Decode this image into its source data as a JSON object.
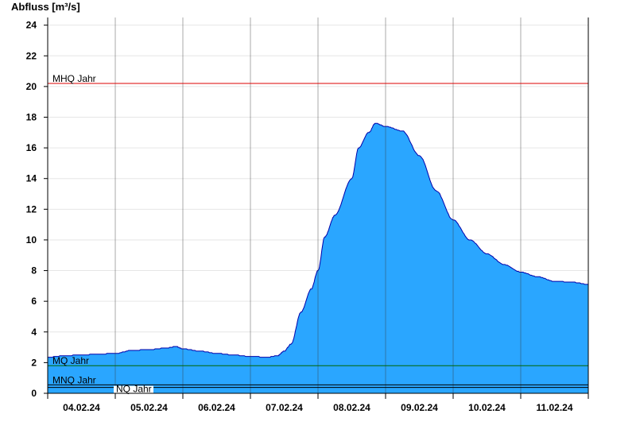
{
  "chart_data": {
    "type": "area",
    "ylabel": "Abfluss [m³/s]",
    "ylim": [
      0,
      24.5
    ],
    "yticks": [
      0,
      2,
      4,
      6,
      8,
      10,
      12,
      14,
      16,
      18,
      20,
      22,
      24
    ],
    "xlim": [
      0,
      8
    ],
    "x_unit": "days",
    "x_tick_labels": [
      "04.02.24",
      "05.02.24",
      "06.02.24",
      "07.02.24",
      "08.02.24",
      "09.02.24",
      "10.02.24",
      "11.02.24"
    ],
    "grid": true,
    "fill_color": "#2aa6ff",
    "line_color": "#0000aa",
    "series": [
      {
        "x": [
          0.0,
          0.25,
          0.5,
          0.75,
          1.0,
          1.25,
          1.5,
          1.75,
          1.9,
          2.0,
          2.25,
          2.5,
          2.75,
          3.0,
          3.25,
          3.4,
          3.5,
          3.6,
          3.75,
          3.9,
          4.0,
          4.1,
          4.25,
          4.5,
          4.6,
          4.75,
          4.85,
          5.0,
          5.25,
          5.5,
          5.75,
          6.0,
          6.25,
          6.5,
          6.75,
          7.0,
          7.25,
          7.5,
          7.75,
          8.0
        ],
        "y": [
          2.35,
          2.45,
          2.5,
          2.55,
          2.6,
          2.8,
          2.85,
          2.95,
          3.05,
          2.9,
          2.75,
          2.6,
          2.5,
          2.4,
          2.35,
          2.45,
          2.75,
          3.2,
          5.3,
          6.8,
          8.0,
          10.2,
          11.6,
          14.0,
          16.0,
          17.0,
          17.6,
          17.4,
          17.1,
          15.5,
          13.2,
          11.3,
          10.0,
          9.1,
          8.4,
          7.9,
          7.6,
          7.3,
          7.25,
          7.1
        ]
      }
    ],
    "reference_lines": [
      {
        "label": "MHQ Jahr",
        "value": 20.2,
        "color": "#dd0000"
      },
      {
        "label": "MQ Jahr",
        "value": 1.8,
        "color": "#006600"
      },
      {
        "label": "MNQ Jahr",
        "value": 0.55,
        "color": "#000000"
      },
      {
        "label": "NQ Jahr",
        "value": 0.38,
        "color": "#000000"
      }
    ]
  }
}
